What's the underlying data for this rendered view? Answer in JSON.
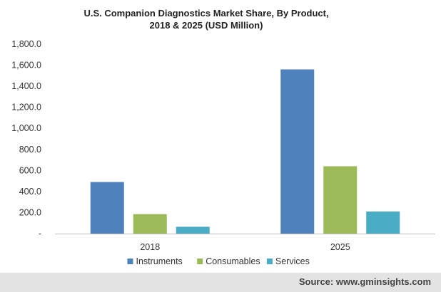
{
  "chart_data": {
    "type": "bar",
    "title_lines": [
      "U.S. Companion Diagnostics Market Share, By Product,",
      "2018 & 2025 (USD Million)"
    ],
    "categories": [
      "2018",
      "2025"
    ],
    "series": [
      {
        "name": "Instruments",
        "values": [
          490,
          1560
        ],
        "color": "#4f81bd"
      },
      {
        "name": "Consumables",
        "values": [
          185,
          640
        ],
        "color": "#9bbb59"
      },
      {
        "name": "Services",
        "values": [
          65,
          210
        ],
        "color": "#4bacc6"
      }
    ],
    "y_ticks": [
      {
        "value": 0,
        "label": "-"
      },
      {
        "value": 200,
        "label": "200.0"
      },
      {
        "value": 400,
        "label": "400.0"
      },
      {
        "value": 600,
        "label": "600.0"
      },
      {
        "value": 800,
        "label": "800.0"
      },
      {
        "value": 1000,
        "label": "1,000.0"
      },
      {
        "value": 1200,
        "label": "1,200.0"
      },
      {
        "value": 1400,
        "label": "1,400.0"
      },
      {
        "value": 1600,
        "label": "1,600.0"
      },
      {
        "value": 1800,
        "label": "1,800.0"
      }
    ],
    "ylim": [
      0,
      1800
    ],
    "grid": false,
    "legend_position": "bottom"
  },
  "source": "Source: www.gminsights.com"
}
